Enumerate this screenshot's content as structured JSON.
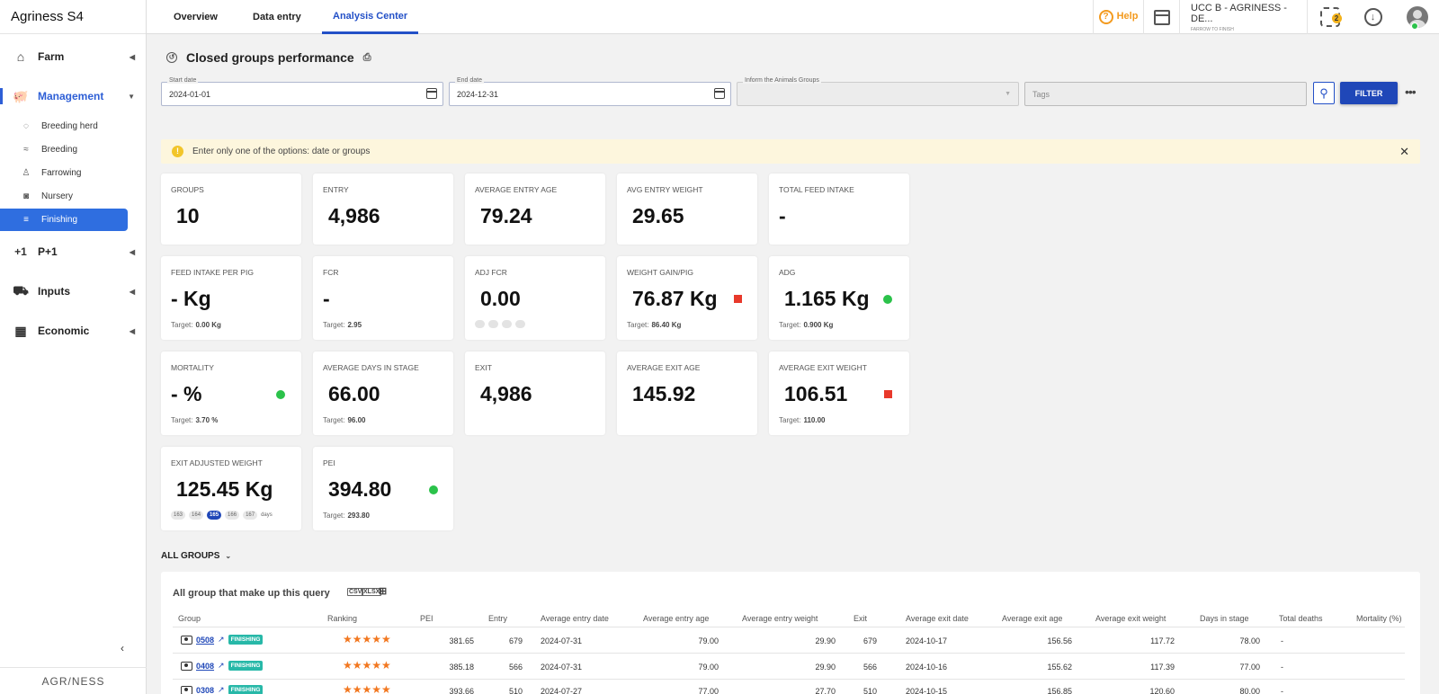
{
  "brand": {
    "name": "Agriness",
    "suffix": "S4"
  },
  "sidebar": {
    "groups": [
      {
        "label": "Farm",
        "icon": "home-icon"
      },
      {
        "label": "Management",
        "icon": "pig-icon"
      },
      {
        "label": "P+1",
        "icon": "plus-one-icon"
      },
      {
        "label": "Inputs",
        "icon": "truck-icon"
      },
      {
        "label": "Economic",
        "icon": "grid-icon"
      }
    ],
    "subitems": [
      {
        "label": "Breeding herd",
        "icon": "sow-icon"
      },
      {
        "label": "Breeding",
        "icon": "breeding-icon"
      },
      {
        "label": "Farrowing",
        "icon": "bottle-icon"
      },
      {
        "label": "Nursery",
        "icon": "piglet-icon"
      },
      {
        "label": "Finishing",
        "icon": "finishing-icon"
      }
    ],
    "footer": "AGR/NESS"
  },
  "topbar": {
    "tabs": [
      "Overview",
      "Data entry",
      "Analysis Center"
    ],
    "active_tab": "Analysis Center",
    "help": "Help",
    "org_name": "UCC B - AGRINESS - DE...",
    "org_sub": "FARROW TO FINISH",
    "notif_count": "2"
  },
  "page": {
    "title": "Closed groups performance"
  },
  "filters": {
    "start_label": "Start date",
    "start_value": "2024-01-01",
    "end_label": "End date",
    "end_value": "2024-12-31",
    "groups_label": "Inform the Animals Groups",
    "tags_placeholder": "Tags",
    "filter_button": "FILTER"
  },
  "alert": {
    "text": "Enter only one of the options: date or groups"
  },
  "cards": {
    "groups": {
      "title": "GROUPS",
      "value": "10"
    },
    "entry": {
      "title": "ENTRY",
      "value": "4,986"
    },
    "avg_entry_age": {
      "title": "AVERAGE ENTRY AGE",
      "value": "79.24"
    },
    "avg_entry_weight": {
      "title": "AVG ENTRY WEIGHT",
      "value": "29.65"
    },
    "total_feed": {
      "title": "TOTAL FEED INTAKE",
      "value": "-"
    },
    "feed_per_pig": {
      "title": "FEED INTAKE PER PIG",
      "value": "- Kg",
      "target_label": "Target:",
      "target": "0.00 Kg"
    },
    "fcr": {
      "title": "FCR",
      "value": "-",
      "target_label": "Target:",
      "target": "2.95"
    },
    "adj_fcr": {
      "title": "ADJ FCR",
      "value": "0.00"
    },
    "weight_gain": {
      "title": "WEIGHT GAIN/PIG",
      "value": "76.87 Kg",
      "target_label": "Target:",
      "target": "86.40 Kg",
      "status_color": "#e8392b"
    },
    "adg": {
      "title": "ADG",
      "value": "1.165 Kg",
      "target_label": "Target:",
      "target": "0.900 Kg",
      "status_color": "#2bc24a"
    },
    "mortality": {
      "title": "MORTALITY",
      "value": "- %",
      "target_label": "Target:",
      "target": "3.70 %",
      "status_color": "#2bc24a"
    },
    "avg_days": {
      "title": "AVERAGE DAYS IN STAGE",
      "value": "66.00",
      "target_label": "Target:",
      "target": "96.00"
    },
    "exit": {
      "title": "EXIT",
      "value": "4,986"
    },
    "avg_exit_age": {
      "title": "AVERAGE EXIT AGE",
      "value": "145.92"
    },
    "avg_exit_weight": {
      "title": "AVERAGE EXIT WEIGHT",
      "value": "106.51",
      "target_label": "Target:",
      "target": "110.00",
      "status_color": "#e8392b"
    },
    "exit_adj_weight": {
      "title": "EXIT ADJUSTED WEIGHT",
      "value": "125.45 Kg",
      "days": [
        "163",
        "164",
        "165",
        "166",
        "167"
      ],
      "days_selected": "165",
      "days_label": "days"
    },
    "pei": {
      "title": "PEI",
      "value": "394.80",
      "target_label": "Target:",
      "target": "293.80",
      "status_color": "#2bc24a"
    }
  },
  "all_groups": {
    "section_label": "ALL GROUPS",
    "title": "All group that make up this query",
    "export_icons": [
      "CSV",
      "XLSX"
    ],
    "columns": [
      "Group",
      "Ranking",
      "PEI",
      "Entry",
      "Average entry date",
      "Average entry age",
      "Average entry weight",
      "Exit",
      "Average exit date",
      "Average exit age",
      "Average exit weight",
      "Days in stage",
      "Total deaths",
      "Mortality (%)"
    ],
    "rows": [
      {
        "group": "0508",
        "stage": "FINISHING",
        "stars": "★★★★★",
        "pei": "381.65",
        "entry": "679",
        "entry_date": "2024-07-31",
        "entry_age": "79.00",
        "entry_weight": "29.90",
        "exit": "679",
        "exit_date": "2024-10-17",
        "exit_age": "156.56",
        "exit_weight": "117.72",
        "days": "78.00",
        "deaths": "-"
      },
      {
        "group": "0408",
        "stage": "FINISHING",
        "stars": "★★★★★",
        "pei": "385.18",
        "entry": "566",
        "entry_date": "2024-07-31",
        "entry_age": "79.00",
        "entry_weight": "29.90",
        "exit": "566",
        "exit_date": "2024-10-16",
        "exit_age": "155.62",
        "exit_weight": "117.39",
        "days": "77.00",
        "deaths": "-"
      },
      {
        "group": "0308",
        "stage": "FINISHING",
        "stars": "★★★★★",
        "pei": "393.66",
        "entry": "510",
        "entry_date": "2024-07-27",
        "entry_age": "77.00",
        "entry_weight": "27.70",
        "exit": "510",
        "exit_date": "2024-10-15",
        "exit_age": "156.85",
        "exit_weight": "120.60",
        "days": "80.00",
        "deaths": "-"
      }
    ]
  }
}
